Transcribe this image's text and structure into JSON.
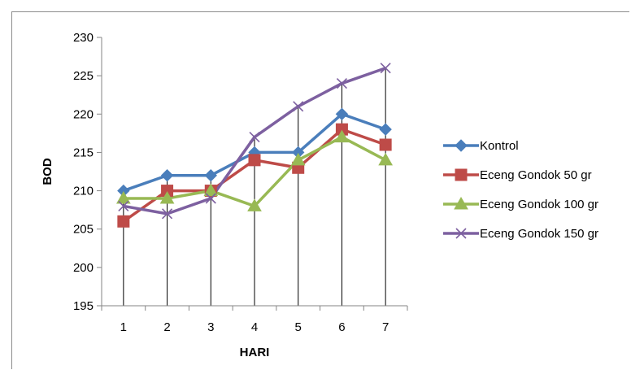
{
  "chart_data": {
    "type": "line",
    "title": "",
    "xlabel": "HARI",
    "ylabel": "BOD",
    "categories": [
      "1",
      "2",
      "3",
      "4",
      "5",
      "6",
      "7"
    ],
    "ylim": [
      195,
      230
    ],
    "yticks": [
      195,
      200,
      205,
      210,
      215,
      220,
      225,
      230
    ],
    "grid": "vertical drop lines at each category",
    "legend_position": "right",
    "series": [
      {
        "name": "Kontrol",
        "values": [
          210,
          212,
          212,
          215,
          215,
          220,
          218
        ],
        "color": "#4a7ebb",
        "marker": "diamond"
      },
      {
        "name": "Eceng Gondok 50 gr",
        "values": [
          206,
          210,
          210,
          214,
          213,
          218,
          216
        ],
        "color": "#be4b48",
        "marker": "square"
      },
      {
        "name": "Eceng Gondok 100 gr",
        "values": [
          209,
          209,
          210,
          208,
          214,
          217,
          214
        ],
        "color": "#98b954",
        "marker": "triangle"
      },
      {
        "name": "Eceng Gondok 150 gr",
        "values": [
          208,
          207,
          209,
          217,
          221,
          224,
          226
        ],
        "color": "#7d60a0",
        "marker": "x"
      }
    ]
  }
}
